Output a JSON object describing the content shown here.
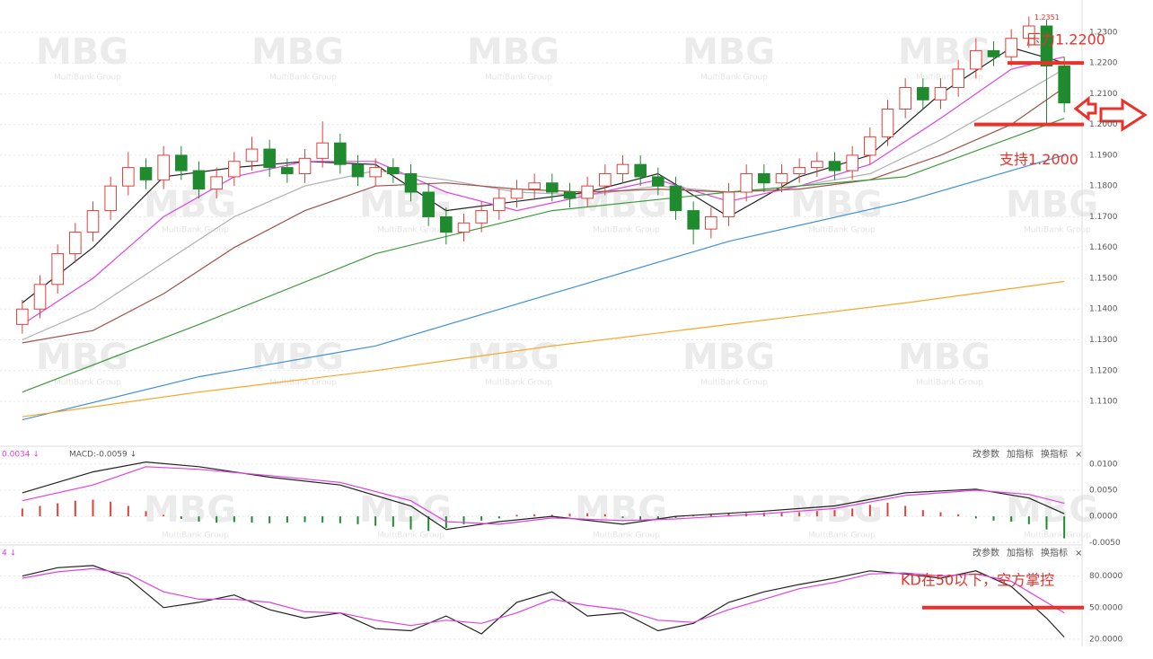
{
  "chart_data": [
    {
      "type": "candlestick",
      "xlim": [
        -0.5,
        59.5
      ],
      "ylim": [
        1.096,
        1.239
      ],
      "yticks": [
        {
          "value": 1.11,
          "label": "1.1100"
        },
        {
          "value": 1.12,
          "label": "1.1200"
        },
        {
          "value": 1.13,
          "label": "1.1300"
        },
        {
          "value": 1.14,
          "label": "1.1400"
        },
        {
          "value": 1.15,
          "label": "1.1500"
        },
        {
          "value": 1.16,
          "label": "1.1600"
        },
        {
          "value": 1.17,
          "label": "1.1700"
        },
        {
          "value": 1.18,
          "label": "1.1800"
        },
        {
          "value": 1.19,
          "label": "1.1900"
        },
        {
          "value": 1.2,
          "label": "1.2000"
        },
        {
          "value": 1.21,
          "label": "1.2100"
        },
        {
          "value": 1.22,
          "label": "1.2200"
        },
        {
          "value": 1.23,
          "label": "1.2300"
        }
      ],
      "up_color": "#e0403a",
      "down_color": "#1f8a2e",
      "open": [
        1.135,
        1.14,
        1.148,
        1.158,
        1.165,
        1.172,
        1.18,
        1.186,
        1.182,
        1.19,
        1.185,
        1.179,
        1.183,
        1.188,
        1.192,
        1.186,
        1.184,
        1.189,
        1.194,
        1.187,
        1.183,
        1.186,
        1.184,
        1.178,
        1.17,
        1.165,
        1.168,
        1.172,
        1.176,
        1.179,
        1.181,
        1.178,
        1.176,
        1.18,
        1.184,
        1.187,
        1.183,
        1.18,
        1.172,
        1.166,
        1.17,
        1.178,
        1.184,
        1.181,
        1.184,
        1.186,
        1.188,
        1.185,
        1.19,
        1.196,
        1.205,
        1.212,
        1.208,
        1.212,
        1.218,
        1.224,
        1.222,
        1.228,
        1.232,
        1.219
      ],
      "high": [
        1.143,
        1.151,
        1.161,
        1.168,
        1.175,
        1.183,
        1.191,
        1.189,
        1.193,
        1.193,
        1.188,
        1.186,
        1.191,
        1.196,
        1.195,
        1.189,
        1.192,
        1.201,
        1.197,
        1.19,
        1.189,
        1.189,
        1.187,
        1.181,
        1.173,
        1.171,
        1.175,
        1.179,
        1.182,
        1.184,
        1.184,
        1.181,
        1.183,
        1.187,
        1.19,
        1.19,
        1.186,
        1.183,
        1.175,
        1.173,
        1.181,
        1.187,
        1.187,
        1.187,
        1.189,
        1.191,
        1.191,
        1.193,
        1.199,
        1.208,
        1.215,
        1.215,
        1.215,
        1.221,
        1.228,
        1.227,
        1.231,
        1.2351,
        1.234,
        1.222
      ],
      "low": [
        1.132,
        1.137,
        1.145,
        1.155,
        1.162,
        1.169,
        1.177,
        1.179,
        1.179,
        1.182,
        1.176,
        1.176,
        1.18,
        1.185,
        1.183,
        1.181,
        1.181,
        1.186,
        1.184,
        1.18,
        1.18,
        1.181,
        1.175,
        1.167,
        1.161,
        1.162,
        1.165,
        1.169,
        1.173,
        1.176,
        1.175,
        1.173,
        1.173,
        1.177,
        1.181,
        1.18,
        1.177,
        1.169,
        1.161,
        1.163,
        1.167,
        1.175,
        1.178,
        1.178,
        1.181,
        1.183,
        1.182,
        1.182,
        1.187,
        1.193,
        1.202,
        1.205,
        1.205,
        1.209,
        1.215,
        1.219,
        1.219,
        1.225,
        1.2,
        1.204
      ],
      "close": [
        1.14,
        1.148,
        1.158,
        1.165,
        1.172,
        1.18,
        1.186,
        1.182,
        1.19,
        1.185,
        1.179,
        1.183,
        1.188,
        1.192,
        1.186,
        1.184,
        1.189,
        1.194,
        1.187,
        1.183,
        1.186,
        1.184,
        1.178,
        1.17,
        1.165,
        1.168,
        1.172,
        1.176,
        1.179,
        1.181,
        1.178,
        1.176,
        1.18,
        1.184,
        1.187,
        1.183,
        1.18,
        1.172,
        1.166,
        1.17,
        1.178,
        1.184,
        1.181,
        1.184,
        1.186,
        1.188,
        1.185,
        1.19,
        1.196,
        1.205,
        1.212,
        1.208,
        1.212,
        1.218,
        1.224,
        1.222,
        1.228,
        1.232,
        1.219,
        1.207
      ],
      "high_label": "1.2351",
      "lines": [
        {
          "color": "#222222",
          "x": [
            0,
            4,
            8,
            12,
            16,
            20,
            24,
            28,
            32,
            36,
            40,
            44,
            48,
            52,
            56,
            59
          ],
          "values": [
            1.142,
            1.16,
            1.183,
            1.186,
            1.188,
            1.187,
            1.172,
            1.175,
            1.178,
            1.184,
            1.17,
            1.183,
            1.19,
            1.21,
            1.225,
            1.22
          ]
        },
        {
          "color": "#e040e0",
          "x": [
            0,
            4,
            8,
            12,
            16,
            20,
            24,
            28,
            32,
            36,
            40,
            44,
            48,
            52,
            56,
            59
          ],
          "values": [
            1.135,
            1.15,
            1.17,
            1.183,
            1.188,
            1.188,
            1.178,
            1.172,
            1.177,
            1.182,
            1.175,
            1.18,
            1.187,
            1.202,
            1.218,
            1.222
          ]
        },
        {
          "color": "#b0b0b0",
          "x": [
            0,
            4,
            8,
            12,
            16,
            20,
            24,
            28,
            32,
            36,
            40,
            44,
            48,
            52,
            56,
            59
          ],
          "values": [
            1.13,
            1.14,
            1.155,
            1.17,
            1.18,
            1.185,
            1.182,
            1.178,
            1.177,
            1.18,
            1.178,
            1.18,
            1.184,
            1.195,
            1.208,
            1.218
          ]
        },
        {
          "color": "#a0524a",
          "x": [
            0,
            4,
            8,
            12,
            16,
            20,
            24,
            28,
            32,
            36,
            40,
            44,
            48,
            52,
            56,
            59
          ],
          "values": [
            1.129,
            1.133,
            1.145,
            1.16,
            1.172,
            1.18,
            1.181,
            1.179,
            1.178,
            1.179,
            1.178,
            1.179,
            1.182,
            1.19,
            1.2,
            1.212
          ]
        },
        {
          "color": "#3c9a3c",
          "x": [
            0,
            10,
            20,
            30,
            40,
            50,
            59
          ],
          "values": [
            1.113,
            1.135,
            1.158,
            1.172,
            1.178,
            1.183,
            1.202
          ]
        },
        {
          "color": "#3f8fd8",
          "x": [
            0,
            10,
            20,
            30,
            40,
            50,
            59
          ],
          "values": [
            1.104,
            1.118,
            1.128,
            1.145,
            1.162,
            1.175,
            1.19
          ]
        },
        {
          "color": "#f5a623",
          "x": [
            0,
            10,
            20,
            30,
            40,
            50,
            59
          ],
          "values": [
            1.105,
            1.113,
            1.12,
            1.128,
            1.135,
            1.142,
            1.149
          ]
        }
      ],
      "annotations": [
        {
          "text": "压力1.2200",
          "value": 1.22
        },
        {
          "text": "支持1.2000",
          "value": 1.2
        }
      ],
      "watermark": "MBG",
      "watermark_sub": "MultiBank Group"
    },
    {
      "type": "macd",
      "xlim": [
        -0.5,
        59.5
      ],
      "ylim": [
        -0.0053,
        0.0129
      ],
      "yticks": [
        {
          "value": 0.01,
          "label": "0.0100"
        },
        {
          "value": 0.005,
          "label": "0.0050"
        },
        {
          "value": 0,
          "label": "0.0000"
        },
        {
          "value": -0.005,
          "label": "-0.0050"
        }
      ],
      "header": [
        "0.0034 ↓",
        "MACD:-0.0059 ↓"
      ],
      "buttons": [
        "改参数",
        "加指标",
        "换指标",
        "×"
      ],
      "up_color": "#e0403a",
      "down_color": "#1f8a2e",
      "histogram": [
        0.0015,
        0.002,
        0.0025,
        0.003,
        0.0032,
        0.0028,
        0.002,
        0.001,
        0.0003,
        -0.0005,
        -0.001,
        -0.0012,
        -0.0011,
        -0.0012,
        -0.0013,
        -0.0012,
        -0.0011,
        -0.0012,
        -0.0013,
        -0.0015,
        -0.0018,
        -0.002,
        -0.0025,
        -0.0028,
        -0.0022,
        -0.0015,
        -0.0008,
        -0.0004,
        0.0003,
        0.0004,
        0.0003,
        0.0005,
        0.0006,
        0.0004,
        -0.0003,
        -0.0008,
        -0.0006,
        -0.0003,
        0.0003,
        0.0005,
        0.0006,
        0.0006,
        0.0007,
        0.0008,
        0.0008,
        0.001,
        0.0012,
        0.0015,
        0.0022,
        0.0026,
        0.002,
        0.0012,
        0.0008,
        0.0004,
        -0.0004,
        -0.0008,
        -0.001,
        -0.0015,
        -0.0025,
        -0.0042
      ],
      "lines": [
        {
          "color": "#222222",
          "x": [
            0,
            4,
            7,
            10,
            14,
            18,
            22,
            24,
            27,
            30,
            34,
            37,
            42,
            46,
            50,
            54,
            57,
            59
          ],
          "values": [
            0.0045,
            0.0085,
            0.0104,
            0.0095,
            0.0075,
            0.006,
            0.002,
            -0.0025,
            -0.001,
            0.0,
            -0.0015,
            0.0,
            0.001,
            0.002,
            0.0045,
            0.0052,
            0.0035,
            0.0005
          ]
        },
        {
          "color": "#e040e0",
          "x": [
            0,
            4,
            7,
            10,
            14,
            18,
            22,
            24,
            27,
            30,
            34,
            37,
            42,
            46,
            50,
            54,
            57,
            59
          ],
          "values": [
            0.003,
            0.006,
            0.0095,
            0.009,
            0.0078,
            0.0065,
            0.003,
            -0.001,
            -0.0015,
            -0.0003,
            -0.0008,
            -0.0005,
            0.0005,
            0.0015,
            0.004,
            0.005,
            0.0042,
            0.0025
          ]
        }
      ]
    },
    {
      "type": "kd",
      "xlim": [
        -0.5,
        59.5
      ],
      "ylim": [
        16.5,
        107
      ],
      "yticks": [
        {
          "value": 80,
          "label": "80.0000"
        },
        {
          "value": 50,
          "label": "50.0000"
        },
        {
          "value": 20,
          "label": "20.0000"
        }
      ],
      "header": [
        "4 ↓"
      ],
      "buttons": [
        "改参数",
        "加指标",
        "换指标",
        "×"
      ],
      "lines": [
        {
          "color": "#222222",
          "x": [
            0,
            2,
            4,
            6,
            8,
            10,
            12,
            14,
            16,
            18,
            20,
            22,
            24,
            26,
            28,
            30,
            32,
            34,
            36,
            38,
            40,
            42,
            44,
            46,
            48,
            50,
            52,
            54,
            56,
            58,
            59
          ],
          "values": [
            80,
            88,
            90,
            78,
            50,
            55,
            62,
            48,
            40,
            45,
            30,
            28,
            42,
            25,
            55,
            65,
            42,
            45,
            28,
            35,
            55,
            65,
            72,
            78,
            85,
            82,
            78,
            85,
            70,
            40,
            22
          ]
        },
        {
          "color": "#e040e0",
          "x": [
            0,
            2,
            4,
            6,
            8,
            10,
            12,
            14,
            16,
            18,
            20,
            22,
            24,
            26,
            28,
            30,
            32,
            34,
            36,
            38,
            40,
            42,
            44,
            46,
            48,
            50,
            52,
            54,
            56,
            58,
            59
          ],
          "values": [
            78,
            84,
            87,
            82,
            65,
            58,
            58,
            55,
            46,
            45,
            38,
            33,
            38,
            35,
            45,
            58,
            52,
            48,
            38,
            36,
            48,
            58,
            68,
            74,
            82,
            83,
            80,
            82,
            75,
            55,
            45
          ]
        }
      ],
      "annotations": [
        {
          "text": "KD在50以下，空方掌控",
          "value": 50
        }
      ]
    }
  ]
}
